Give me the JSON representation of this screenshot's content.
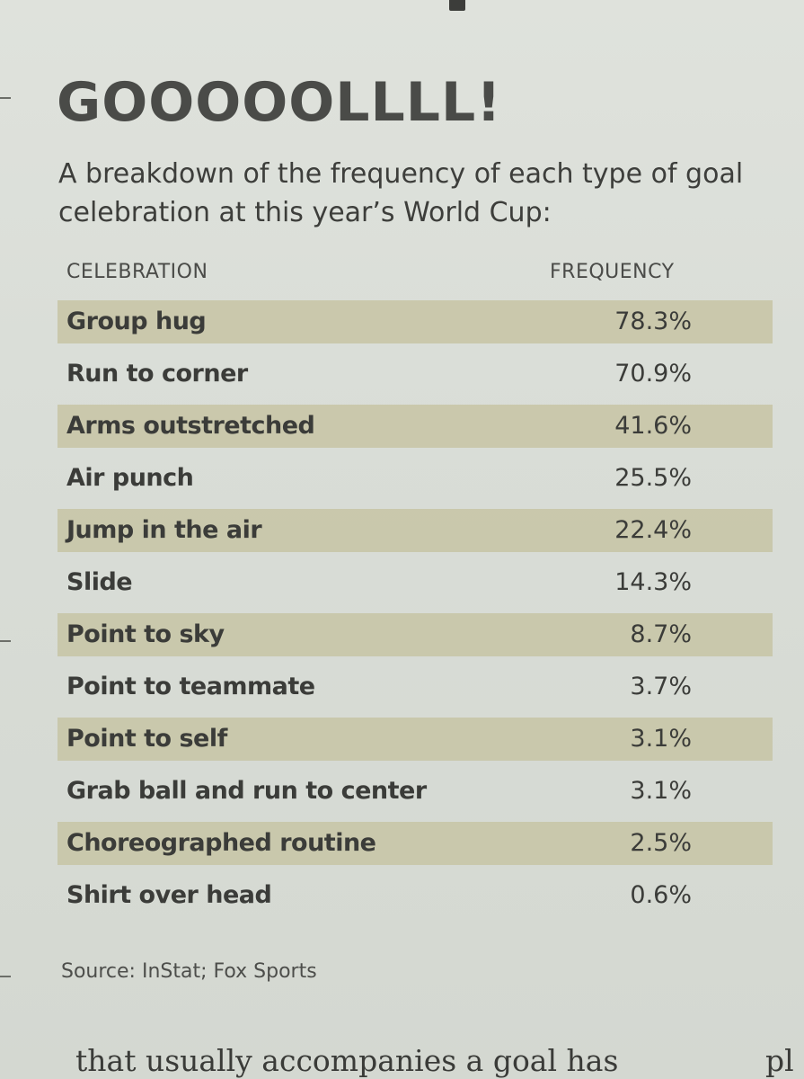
{
  "headline": "GOOOOOLLLL!",
  "subtitle": "A breakdown of the frequency of each type of goal celebration at this year’s World Cup:",
  "table": {
    "headers": {
      "celebration": "CELEBRATION",
      "frequency": "FREQUENCY"
    },
    "rows": [
      {
        "label": "Group hug",
        "value": "78.3%"
      },
      {
        "label": "Run to corner",
        "value": "70.9%"
      },
      {
        "label": "Arms outstretched",
        "value": "41.6%"
      },
      {
        "label": "Air punch",
        "value": "25.5%"
      },
      {
        "label": "Jump in the air",
        "value": "22.4%"
      },
      {
        "label": "Slide",
        "value": "14.3%"
      },
      {
        "label": "Point to sky",
        "value": "8.7%"
      },
      {
        "label": "Point to teammate",
        "value": "3.7%"
      },
      {
        "label": "Point to self",
        "value": "3.1%"
      },
      {
        "label": "Grab ball and run to center",
        "value": "3.1%"
      },
      {
        "label": "Choreographed routine",
        "value": "2.5%"
      },
      {
        "label": "Shirt over head",
        "value": "0.6%"
      }
    ]
  },
  "source": "Source: InStat; Fox Sports",
  "body_text_fragment": "that usually accompanies a goal has",
  "body_text_fragment_right": "pl",
  "colors": {
    "paper": "#d9ddd7",
    "row_shade": "#c7c4a4",
    "ink": "#3b3c39"
  }
}
